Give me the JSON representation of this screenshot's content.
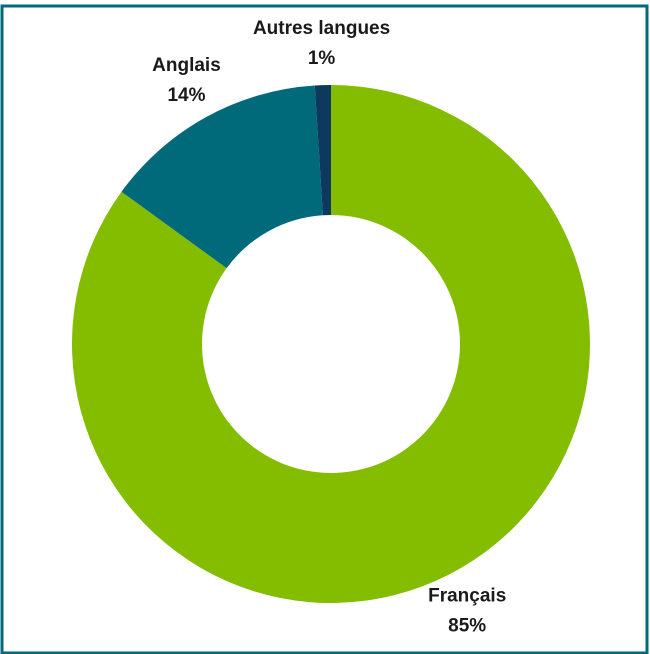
{
  "chart_data": {
    "type": "donut",
    "categories": [
      "Français",
      "Anglais",
      "Autres langues"
    ],
    "values": [
      85,
      14,
      1
    ],
    "value_labels": [
      "85%",
      "14%",
      "1%"
    ],
    "colors": [
      "#84bc00",
      "#006a7a",
      "#0d3a5c"
    ]
  }
}
